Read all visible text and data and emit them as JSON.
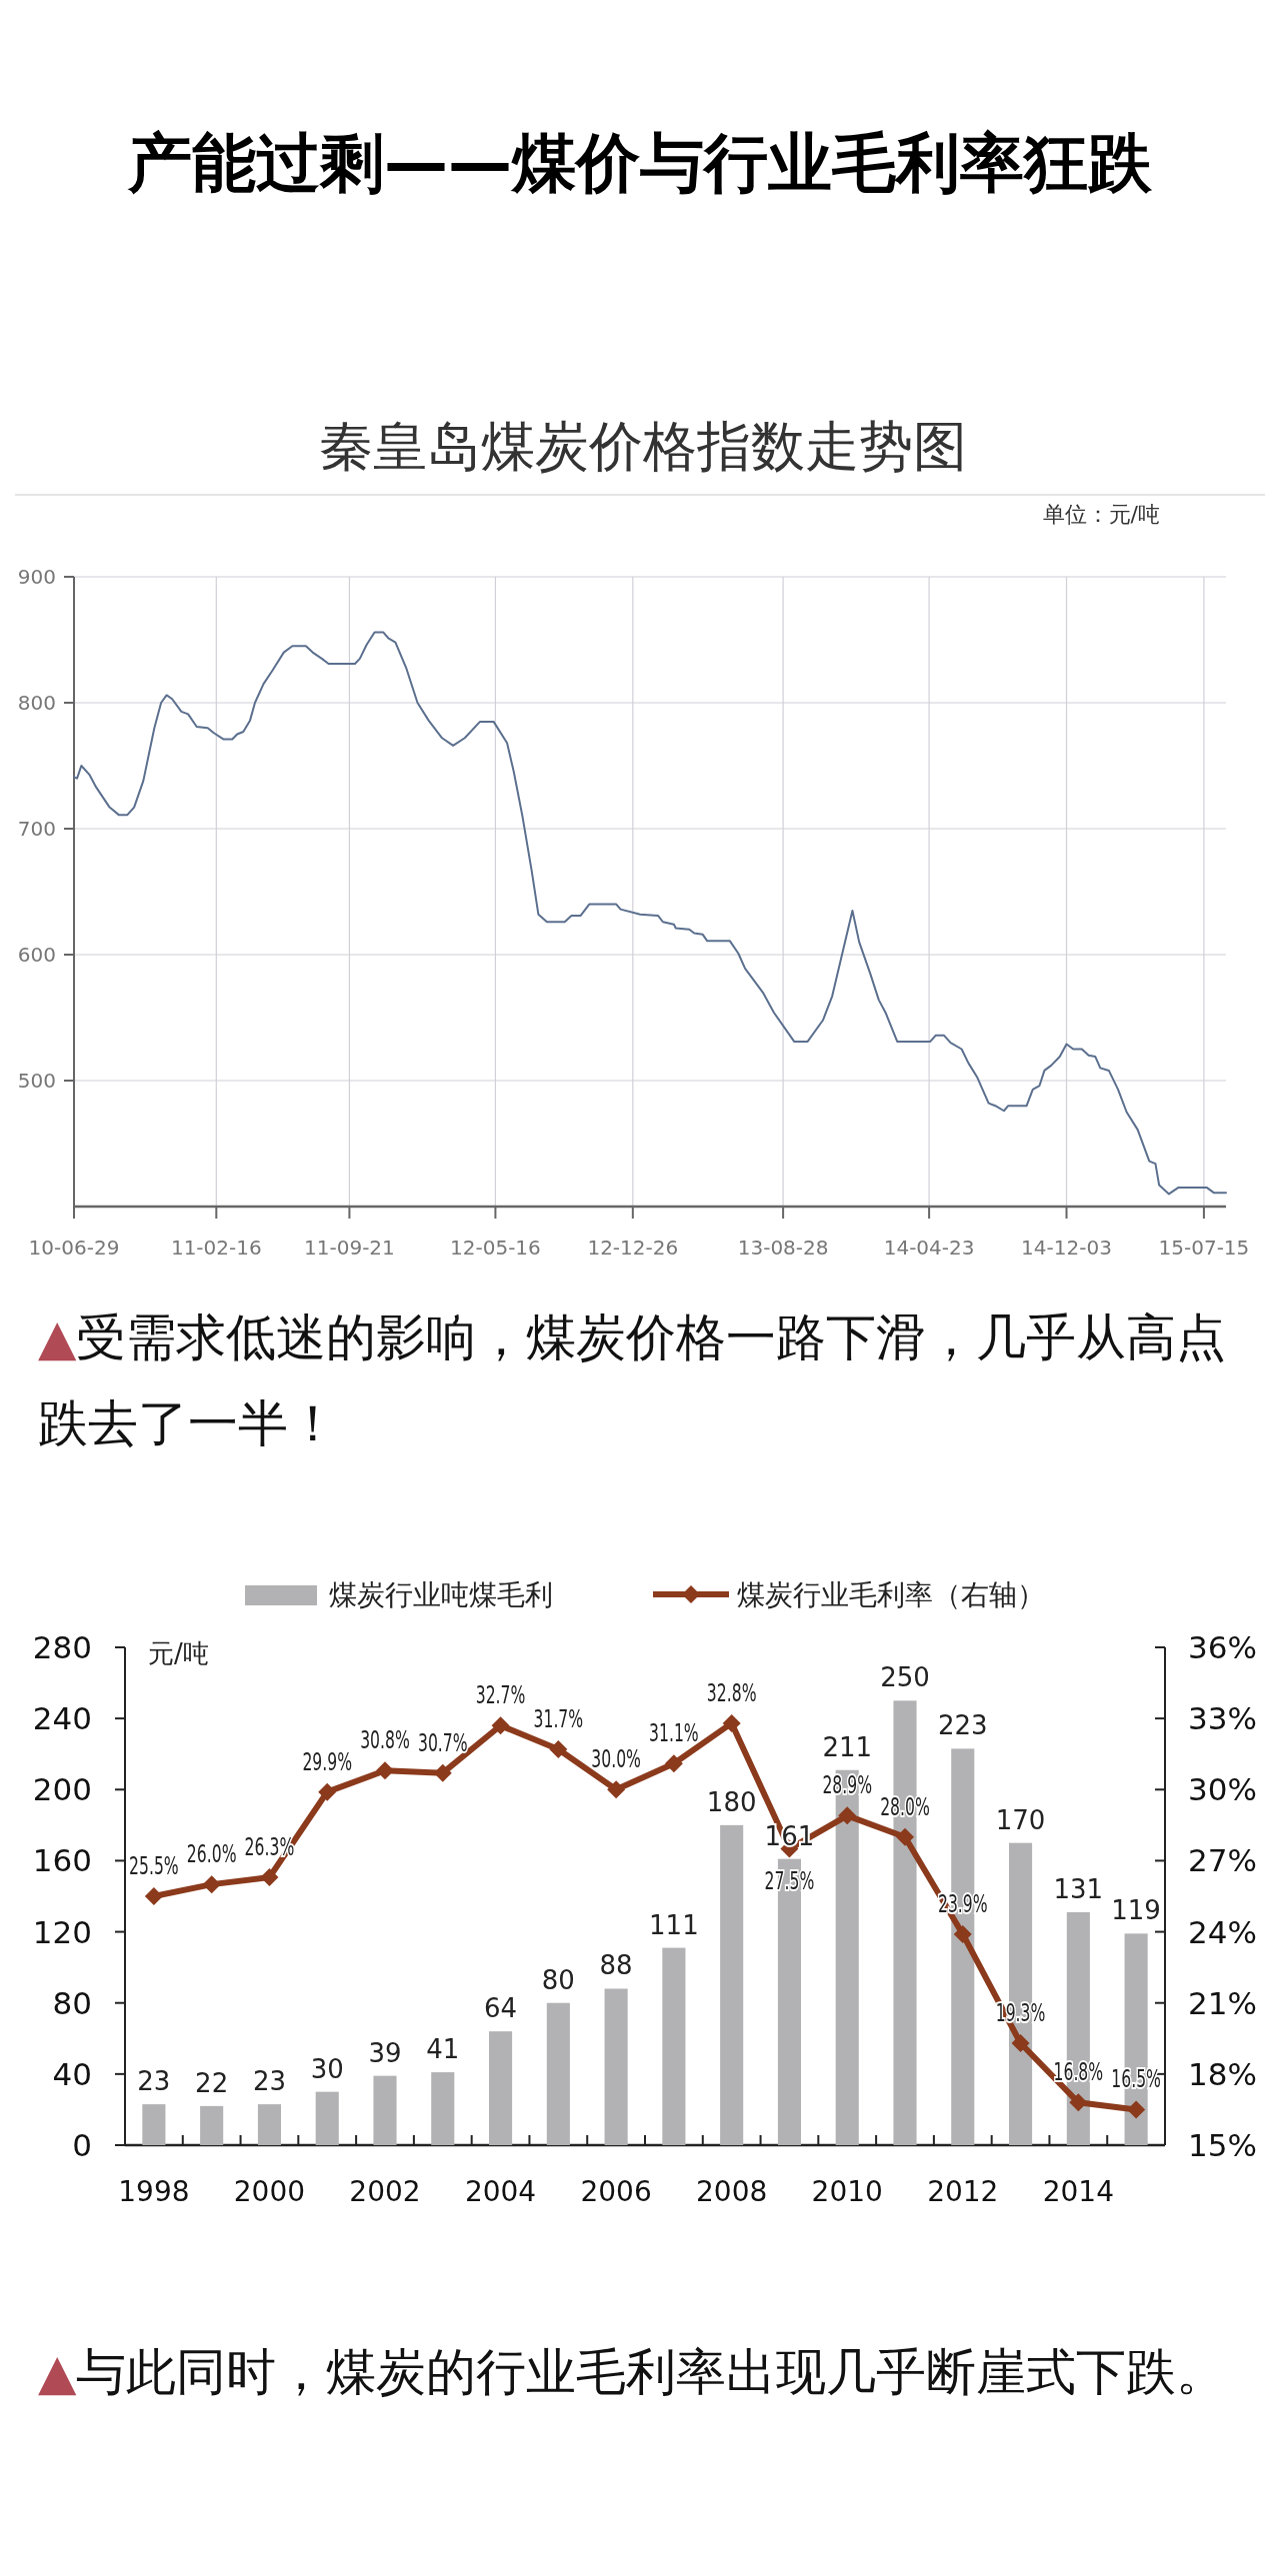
{
  "chart_data": [
    {
      "type": "line",
      "title": "秦皇岛煤炭价格指数走势图",
      "subtitle": "单位：元/吨",
      "annotations": [
        "产能过剩——煤价与行业毛利率狂跌",
        "▲受需求低迷的影响，煤炭价格一路下滑，几乎从高点跌去了一半！"
      ],
      "x": [
        "2010-06-29",
        "2010-07-04",
        "2010-07-11",
        "2010-07-24",
        "2010-08-04",
        "2010-08-26",
        "2010-09-10",
        "2010-09-24",
        "2010-10-05",
        "2010-10-20",
        "2010-11-07",
        "2010-11-18",
        "2010-11-27",
        "2010-12-06",
        "2010-12-21",
        "2011-01-01",
        "2011-01-15",
        "2011-02-02",
        "2011-02-12",
        "2011-02-28",
        "2011-03-14",
        "2011-03-22",
        "2011-04-01",
        "2011-04-12",
        "2011-04-20",
        "2011-05-04",
        "2011-05-19",
        "2011-06-06",
        "2011-06-20",
        "2011-07-12",
        "2011-07-23",
        "2011-08-07",
        "2011-08-18",
        "2011-09-30",
        "2011-10-08",
        "2011-10-19",
        "2011-11-01",
        "2011-11-15",
        "2011-11-24",
        "2011-12-05",
        "2011-12-23",
        "2012-01-10",
        "2012-01-28",
        "2012-02-19",
        "2012-03-08",
        "2012-03-27",
        "2012-04-21",
        "2012-05-13",
        "2012-06-04",
        "2012-06-15",
        "2012-06-29",
        "2012-07-14",
        "2012-07-25",
        "2012-08-08",
        "2012-09-06",
        "2012-09-17",
        "2012-10-02",
        "2012-10-16",
        "2012-11-29",
        "2012-12-06",
        "2013-01-07",
        "2013-02-05",
        "2013-02-13",
        "2013-03-03",
        "2013-03-06",
        "2013-03-28",
        "2013-04-05",
        "2013-04-19",
        "2013-04-26",
        "2013-06-02",
        "2013-06-16",
        "2013-06-27",
        "2013-07-26",
        "2013-08-13",
        "2013-09-15",
        "2013-10-07",
        "2013-11-01",
        "2013-11-16",
        "2013-12-19",
        "2013-12-30",
        "2014-01-17",
        "2014-01-31",
        "2014-02-11",
        "2014-03-02",
        "2014-04-25",
        "2014-05-04",
        "2014-05-17",
        "2014-05-28",
        "2014-06-15",
        "2014-06-26",
        "2014-07-10",
        "2014-07-29",
        "2014-08-09",
        "2014-08-23",
        "2014-08-30",
        "2014-09-29",
        "2014-10-09",
        "2014-10-20",
        "2014-10-28",
        "2014-11-08",
        "2014-11-22",
        "2014-12-03",
        "2014-12-14",
        "2014-12-28",
        "2015-01-08",
        "2015-01-19",
        "2015-01-27",
        "2015-02-10",
        "2015-02-25",
        "2015-03-11",
        "2015-03-29",
        "2015-04-17",
        "2015-04-27",
        "2015-05-03",
        "2015-05-19",
        "2015-06-03",
        "2015-07-20",
        "2015-07-31",
        "2015-08-20"
      ],
      "series": [
        {
          "color": "#5b6f8e",
          "values": [
            741,
            740,
            750,
            743,
            733,
            717,
            711,
            711,
            717,
            738,
            780,
            800,
            806,
            803,
            793,
            791,
            781,
            780,
            776,
            771,
            771,
            775,
            777,
            786,
            800,
            815,
            826,
            840,
            845,
            845,
            840,
            835,
            831,
            831,
            835,
            846,
            856,
            856,
            851,
            848,
            827,
            800,
            786,
            772,
            766,
            772,
            785,
            785,
            768,
            745,
            710,
            667,
            632,
            626,
            626,
            631,
            631,
            640,
            640,
            636,
            632,
            631,
            626,
            624,
            621,
            620,
            617,
            616,
            611,
            611,
            601,
            589,
            570,
            554,
            531,
            531,
            548,
            567,
            635,
            610,
            585,
            564,
            554,
            531,
            531,
            536,
            536,
            530,
            525,
            514,
            503,
            482,
            480,
            476,
            480,
            480,
            493,
            496,
            508,
            512,
            519,
            529,
            525,
            525,
            520,
            519,
            510,
            508,
            493,
            475,
            461,
            436,
            434,
            417,
            410,
            415,
            415,
            411,
            411
          ]
        }
      ],
      "xlim": [
        "2010-06-29",
        "2015-08-20"
      ],
      "xticks": [
        {
          "value": "2010-06-29",
          "label": "10-06-29"
        },
        {
          "value": "2011-02-16",
          "label": "11-02-16"
        },
        {
          "value": "2011-09-21",
          "label": "11-09-21"
        },
        {
          "value": "2012-05-16",
          "label": "12-05-16"
        },
        {
          "value": "2012-12-26",
          "label": "12-12-26"
        },
        {
          "value": "2013-08-28",
          "label": "13-08-28"
        },
        {
          "value": "2014-04-23",
          "label": "14-04-23"
        },
        {
          "value": "2014-12-03",
          "label": "14-12-03"
        },
        {
          "value": "2015-07-15",
          "label": "15-07-15"
        }
      ],
      "ylim": [
        400,
        900
      ],
      "yticks": [
        500,
        600,
        700,
        800,
        900
      ],
      "grid": true
    },
    {
      "type": "bar",
      "ylabel": "元/吨",
      "legend": "top",
      "annotations": [
        "▲与此同时，煤炭的行业毛利率出现几乎断崖式下跌。"
      ],
      "categories": [
        "1998",
        null,
        "2000",
        null,
        "2002",
        null,
        "2004",
        null,
        "2006",
        null,
        "2008",
        null,
        "2010",
        null,
        "2012",
        null,
        "2014",
        null
      ],
      "series": [
        {
          "name": "煤炭行业吨煤毛利",
          "color": "#b2b2b4",
          "values": [
            23,
            22,
            23,
            30,
            39,
            41,
            64,
            80,
            88,
            111,
            180,
            161,
            211,
            250,
            223,
            170,
            131,
            119
          ],
          "value_labels": [
            "23",
            "22",
            "23",
            "30",
            "39",
            "41",
            "64",
            "80",
            "88",
            "111",
            "180",
            "161",
            "211",
            "250",
            "223",
            "170",
            "131",
            "119"
          ]
        },
        {
          "name": "煤炭行业毛利率（右轴）",
          "type": "line",
          "axis": "y2",
          "marker": "diamond",
          "color": "#8b3a1c",
          "values": [
            25.5,
            26.0,
            26.3,
            29.9,
            30.8,
            30.7,
            32.7,
            31.7,
            30.0,
            31.1,
            32.8,
            27.5,
            28.9,
            28.0,
            23.9,
            19.3,
            16.8,
            16.5
          ],
          "value_labels": [
            "25.5%",
            "26.0%",
            "26.3%",
            "29.9%",
            "30.8%",
            "30.7%",
            "32.7%",
            "31.7%",
            "30.0%",
            "31.1%",
            "32.8%",
            "27.5%",
            "28.9%",
            "28.0%",
            "23.9%",
            "19.3%",
            "16.8%",
            "16.5%"
          ]
        }
      ],
      "ylim": [
        0,
        280
      ],
      "yticks": [
        0,
        40,
        80,
        120,
        160,
        200,
        240,
        280
      ],
      "y2lim": [
        15,
        36
      ],
      "y2ticks": [
        {
          "value": 15,
          "label": "15%"
        },
        {
          "value": 18,
          "label": "18%"
        },
        {
          "value": 21,
          "label": "21%"
        },
        {
          "value": 24,
          "label": "24%"
        },
        {
          "value": 27,
          "label": "27%"
        },
        {
          "value": 30,
          "label": "30%"
        },
        {
          "value": 33,
          "label": "33%"
        },
        {
          "value": 36,
          "label": "36%"
        }
      ]
    }
  ]
}
